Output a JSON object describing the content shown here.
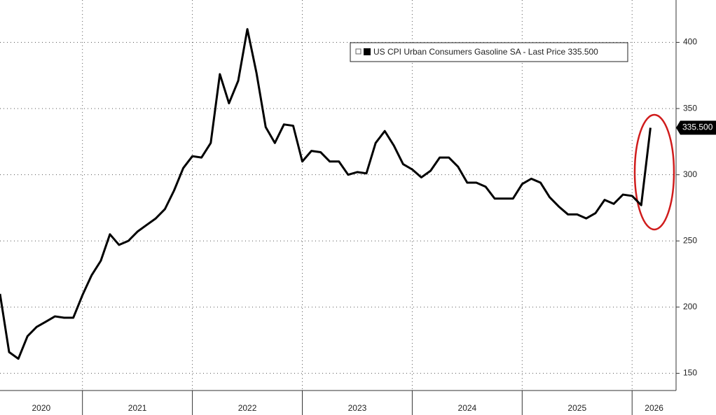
{
  "chart_data": {
    "type": "line",
    "series": [
      {
        "name": "US CPI Urban Consumers Gasoline SA",
        "color": "#000000",
        "x": [
          2020.25,
          2020.333,
          2020.417,
          2020.5,
          2020.583,
          2020.667,
          2020.75,
          2020.833,
          2020.917,
          2021,
          2021.083,
          2021.167,
          2021.25,
          2021.333,
          2021.417,
          2021.5,
          2021.583,
          2021.667,
          2021.75,
          2021.833,
          2021.917,
          2022,
          2022.083,
          2022.167,
          2022.25,
          2022.333,
          2022.417,
          2022.5,
          2022.583,
          2022.667,
          2022.75,
          2022.833,
          2022.917,
          2023,
          2023.083,
          2023.167,
          2023.25,
          2023.333,
          2023.417,
          2023.5,
          2023.583,
          2023.667,
          2023.75,
          2023.833,
          2023.917,
          2024,
          2024.083,
          2024.167,
          2024.25,
          2024.333,
          2024.417,
          2024.5,
          2024.583,
          2024.667,
          2024.75,
          2024.833,
          2024.917,
          2025,
          2025.083,
          2025.167,
          2025.25,
          2025.333,
          2025.417,
          2025.5,
          2025.583,
          2025.667,
          2025.75,
          2025.833,
          2025.917,
          2026,
          2026.083,
          2026.167
        ],
        "values": [
          210,
          166,
          161,
          178,
          185,
          189,
          193,
          192,
          192,
          209,
          224,
          235,
          255,
          247,
          250,
          257,
          262,
          267,
          274,
          288,
          305,
          314,
          313,
          324,
          376,
          354,
          371,
          410,
          377,
          336,
          324,
          338,
          337,
          310,
          318,
          317,
          310,
          310,
          300,
          302,
          301,
          324,
          333,
          322,
          308,
          304,
          298,
          303,
          313,
          313,
          306,
          294,
          294,
          291,
          282,
          282,
          282,
          293,
          297,
          294,
          283,
          276,
          270,
          270,
          267,
          271,
          281,
          278,
          285,
          284,
          277,
          335.5
        ]
      }
    ],
    "legend_suffix": "- Last Price",
    "last_value_label": "335.500",
    "xlim": [
      2020.25,
      2026.4
    ],
    "xticks": [
      2020,
      2021,
      2022,
      2023,
      2024,
      2025,
      2026
    ],
    "ylim": [
      137,
      432
    ],
    "yticks": [
      150,
      200,
      250,
      300,
      350,
      400
    ],
    "grid": true
  }
}
